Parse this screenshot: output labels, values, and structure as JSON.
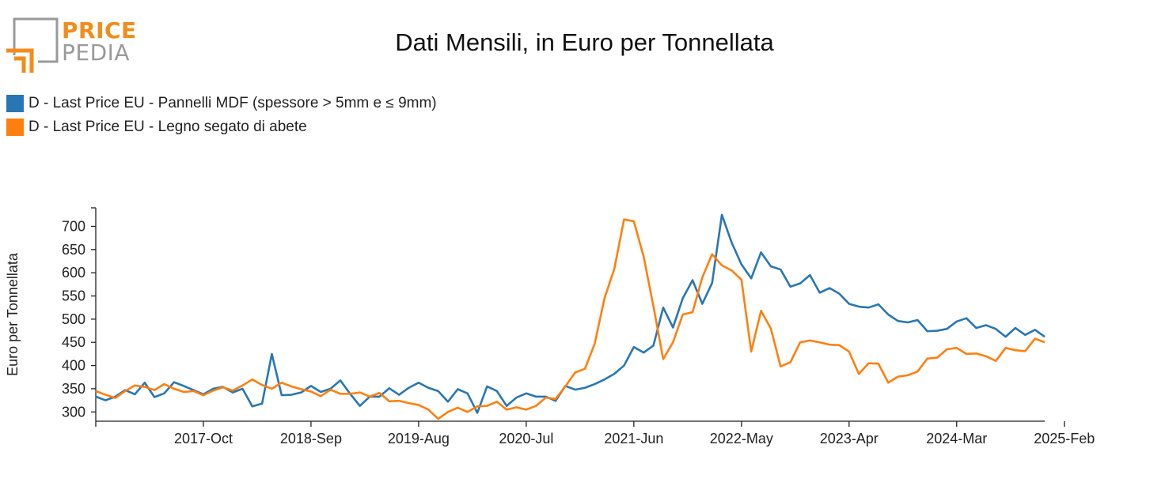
{
  "logo": {
    "top": "PRICE",
    "bottom": "PEDIA"
  },
  "colors": {
    "series1": "#2877b5",
    "series2": "#ff7f0e",
    "brand_orange": "#f28c1a",
    "brand_gray": "#9a9a9a"
  },
  "chart_data": {
    "type": "line",
    "title": "Dati Mensili, in Euro per Tonnellata",
    "xlabel": "",
    "ylabel": "Euro per Tonnellata",
    "ylim": [
      280,
      740
    ],
    "yticks": [
      300,
      350,
      400,
      450,
      500,
      550,
      600,
      650,
      700
    ],
    "x_start": "2016-11",
    "x_ticks": [
      "2017-Oct",
      "2018-Sep",
      "2019-Aug",
      "2020-Jul",
      "2021-Jun",
      "2022-May",
      "2023-Apr",
      "2024-Mar",
      "2025-Feb"
    ],
    "legend_position": "top-left",
    "grid": false,
    "series": [
      {
        "name": "D - Last Price EU - Pannelli MDF (spessore > 5mm e ≤ 9mm)",
        "values": [
          333,
          325,
          333,
          347,
          338,
          363,
          332,
          340,
          364,
          356,
          347,
          338,
          350,
          354,
          342,
          350,
          312,
          318,
          425,
          336,
          337,
          342,
          356,
          343,
          350,
          368,
          339,
          313,
          333,
          333,
          351,
          337,
          352,
          363,
          352,
          345,
          322,
          349,
          340,
          298,
          355,
          345,
          313,
          331,
          340,
          333,
          333,
          324,
          356,
          348,
          352,
          360,
          370,
          382,
          400,
          440,
          428,
          443,
          525,
          482,
          545,
          584,
          533,
          578,
          725,
          665,
          618,
          588,
          644,
          614,
          607,
          570,
          577,
          595,
          557,
          567,
          555,
          533,
          527,
          525,
          532,
          510,
          496,
          493,
          498,
          474,
          475,
          479,
          495,
          502,
          481,
          487,
          479,
          462,
          481,
          466,
          477,
          462
        ]
      },
      {
        "name": "D - Last Price EU - Legno segato di abete",
        "values": [
          345,
          337,
          330,
          345,
          357,
          354,
          347,
          360,
          350,
          343,
          345,
          336,
          346,
          353,
          346,
          357,
          370,
          358,
          350,
          363,
          355,
          349,
          344,
          334,
          348,
          339,
          339,
          342,
          333,
          341,
          323,
          324,
          319,
          315,
          305,
          285,
          300,
          309,
          300,
          312,
          313,
          322,
          305,
          310,
          305,
          313,
          331,
          328,
          355,
          385,
          393,
          447,
          545,
          608,
          715,
          711,
          635,
          528,
          414,
          450,
          510,
          515,
          590,
          640,
          616,
          605,
          585,
          430,
          518,
          480,
          398,
          407,
          450,
          454,
          450,
          445,
          444,
          430,
          382,
          405,
          404,
          363,
          376,
          379,
          387,
          415,
          417,
          435,
          438,
          425,
          426,
          420,
          410,
          438,
          433,
          431,
          458,
          450
        ]
      }
    ]
  }
}
